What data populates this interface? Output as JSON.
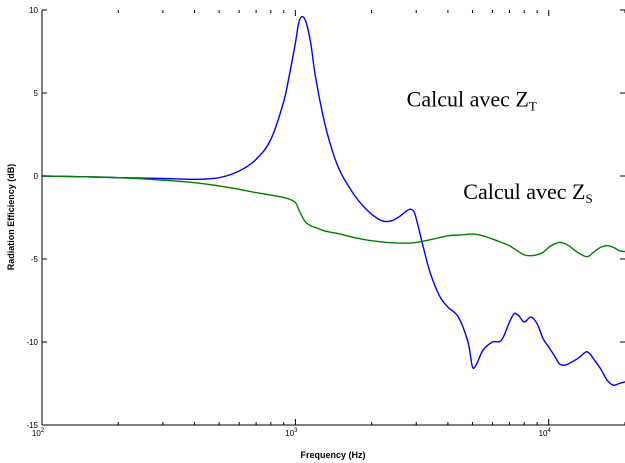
{
  "chart_data": {
    "type": "line",
    "xlabel": "Frequency (Hz)",
    "ylabel": "Radiation Efficiency (dB)",
    "x_scale": "log",
    "xlim": [
      100,
      20000
    ],
    "ylim": [
      -15,
      10
    ],
    "x_ticks": [
      {
        "value": 100,
        "base": "10",
        "exp": "2"
      },
      {
        "value": 1000,
        "base": "10",
        "exp": "3"
      },
      {
        "value": 10000,
        "base": "10",
        "exp": "4"
      }
    ],
    "y_ticks": [
      {
        "value": 10,
        "label": "10"
      },
      {
        "value": 5,
        "label": "5"
      },
      {
        "value": 0,
        "label": "0"
      },
      {
        "value": -5,
        "label": "-5"
      },
      {
        "value": -10,
        "label": "-10"
      },
      {
        "value": -15,
        "label": "-15"
      }
    ],
    "grid": false,
    "series": [
      {
        "color": "#0000ff",
        "x": [
          100,
          150,
          200,
          300,
          400,
          500,
          600,
          700,
          800,
          900,
          950,
          1000,
          1030,
          1060,
          1100,
          1150,
          1200,
          1300,
          1400,
          1500,
          1650,
          1800,
          2000,
          2200,
          2400,
          2600,
          2750,
          2850,
          2950,
          3050,
          3200,
          3400,
          3700,
          4000,
          4400,
          4800,
          5000,
          5200,
          5500,
          6000,
          6500,
          7000,
          7300,
          7600,
          8000,
          8500,
          9000,
          9500,
          10000,
          10500,
          11000,
          11500,
          12000,
          13000,
          14000,
          14500,
          15000,
          16000,
          17000,
          18000,
          19000,
          20000
        ],
        "y": [
          0,
          -0.05,
          -0.1,
          -0.15,
          -0.2,
          -0.1,
          0.3,
          1.0,
          2.2,
          4.5,
          6.2,
          8.0,
          9.2,
          9.6,
          9.3,
          8.0,
          6.0,
          3.3,
          1.5,
          0.3,
          -0.8,
          -1.6,
          -2.3,
          -2.7,
          -2.7,
          -2.4,
          -2.1,
          -2.0,
          -2.2,
          -3.0,
          -4.3,
          -5.8,
          -7.2,
          -7.9,
          -8.5,
          -10.0,
          -11.5,
          -11.3,
          -10.5,
          -10.0,
          -9.9,
          -8.8,
          -8.3,
          -8.4,
          -8.8,
          -8.5,
          -8.9,
          -9.8,
          -10.3,
          -10.8,
          -11.3,
          -11.4,
          -11.3,
          -11.0,
          -10.6,
          -10.7,
          -11.0,
          -11.6,
          -12.3,
          -12.6,
          -12.5,
          -12.4
        ]
      },
      {
        "color": "#008000",
        "x": [
          100,
          150,
          200,
          300,
          400,
          500,
          600,
          700,
          800,
          900,
          950,
          1000,
          1030,
          1060,
          1100,
          1150,
          1200,
          1300,
          1500,
          1700,
          2000,
          2300,
          2700,
          3000,
          3500,
          4000,
          4500,
          5000,
          5500,
          6000,
          6500,
          7000,
          7500,
          8000,
          8500,
          9000,
          9500,
          10000,
          10500,
          11000,
          11500,
          12000,
          13000,
          14000,
          14500,
          15000,
          16000,
          17000,
          18000,
          19000,
          20000
        ],
        "y": [
          0,
          -0.05,
          -0.1,
          -0.25,
          -0.4,
          -0.6,
          -0.8,
          -1.0,
          -1.15,
          -1.3,
          -1.4,
          -1.6,
          -2.0,
          -2.4,
          -2.8,
          -3.0,
          -3.1,
          -3.3,
          -3.5,
          -3.7,
          -3.9,
          -4.0,
          -4.05,
          -4.0,
          -3.8,
          -3.6,
          -3.55,
          -3.5,
          -3.6,
          -3.8,
          -4.0,
          -4.2,
          -4.5,
          -4.75,
          -4.8,
          -4.75,
          -4.6,
          -4.3,
          -4.1,
          -4.0,
          -4.05,
          -4.2,
          -4.6,
          -4.85,
          -4.8,
          -4.6,
          -4.3,
          -4.2,
          -4.3,
          -4.5,
          -4.55
        ]
      }
    ],
    "annotations": [
      {
        "main": "Calcul avec Z",
        "sub": "T",
        "x": 2750,
        "y": 4.2
      },
      {
        "main": "Calcul avec Z",
        "sub": "S",
        "x": 4600,
        "y": -1.4
      }
    ]
  }
}
